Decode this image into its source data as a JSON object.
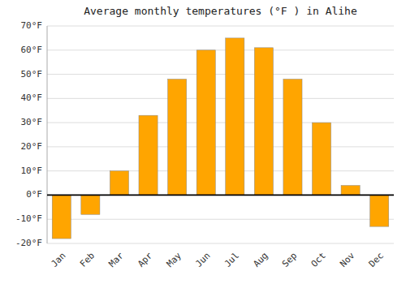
{
  "chart_data": {
    "type": "bar",
    "title": "Average monthly temperatures (°F ) in Alihe",
    "categories": [
      "Jan",
      "Feb",
      "Mar",
      "Apr",
      "May",
      "Jun",
      "Jul",
      "Aug",
      "Sep",
      "Oct",
      "Nov",
      "Dec"
    ],
    "values": [
      -18,
      -8,
      10,
      33,
      48,
      60,
      65,
      61,
      48,
      30,
      4,
      -13
    ],
    "color": "#FFA500",
    "ylim": [
      -20,
      70
    ],
    "yticks": [
      {
        "value": -20,
        "label": "-20°F"
      },
      {
        "value": -10,
        "label": "-10°F"
      },
      {
        "value": 0,
        "label": "0°F"
      },
      {
        "value": 10,
        "label": "10°F"
      },
      {
        "value": 20,
        "label": "20°F"
      },
      {
        "value": 30,
        "label": "30°F"
      },
      {
        "value": 40,
        "label": "40°F"
      },
      {
        "value": 50,
        "label": "50°F"
      },
      {
        "value": 60,
        "label": "60°F"
      },
      {
        "value": 70,
        "label": "70°F"
      }
    ],
    "grid": true
  }
}
